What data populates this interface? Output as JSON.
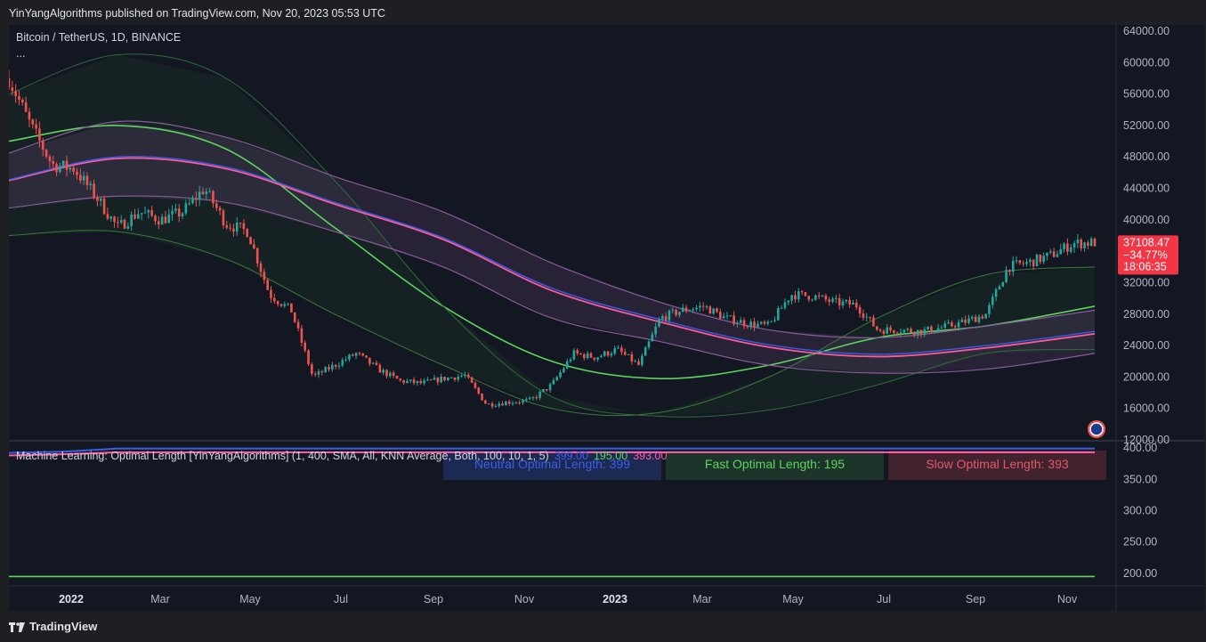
{
  "header": {
    "publisher_line": "YinYangAlgorithms published on TradingView.com, Nov 20, 2023 05:53 UTC"
  },
  "footer": {
    "brand": "TradingView"
  },
  "chart_data": [
    {
      "type": "candlestick",
      "title": "Bitcoin / TetherUS, 1D, BINANCE",
      "subtitle": "...",
      "x_ticks": [
        "2022",
        "Mar",
        "May",
        "Jul",
        "Sep",
        "Nov",
        "2023",
        "Mar",
        "May",
        "Jul",
        "Sep",
        "Nov"
      ],
      "y_ticks": [
        "64000.00",
        "60000.00",
        "56000.00",
        "52000.00",
        "48000.00",
        "44000.00",
        "40000.00",
        "36000.00",
        "32000.00",
        "28000.00",
        "24000.00",
        "20000.00",
        "16000.00",
        "12000.00"
      ],
      "ylim": [
        12000,
        64000
      ],
      "price_label": {
        "price": "37108.47",
        "change": "−34.77%",
        "countdown": "18:06:35",
        "color": "#f23645"
      },
      "close_path": {
        "x": [
          0,
          2,
          4,
          6,
          8,
          10,
          12,
          14,
          16,
          18,
          20,
          22,
          24,
          26,
          28,
          30,
          32,
          34,
          36,
          38,
          40,
          42,
          44,
          46,
          48,
          50,
          52,
          54,
          56,
          58,
          60,
          62,
          64,
          66,
          68,
          70,
          72,
          74,
          76,
          78,
          80,
          82,
          84,
          86,
          88,
          90,
          92,
          94,
          96,
          98,
          100
        ],
        "y": [
          58000,
          52000,
          47000,
          46500,
          43000,
          39000,
          41000,
          40000,
          41000,
          44000,
          39500,
          38500,
          30500,
          28500,
          20000,
          21500,
          23000,
          21000,
          19500,
          19200,
          19800,
          20200,
          16500,
          16800,
          17000,
          19000,
          23000,
          22500,
          23500,
          21500,
          27500,
          28500,
          29000,
          27500,
          26800,
          26500,
          30500,
          30300,
          29500,
          29200,
          26000,
          26000,
          25800,
          26300,
          27000,
          28000,
          34000,
          34600,
          35500,
          37000,
          37108
        ]
      },
      "series": [
        {
          "name": "",
          "color": "#5ed45e",
          "x": [
            0,
            10,
            20,
            30,
            40,
            50,
            60,
            70,
            80,
            90,
            100
          ],
          "y": [
            50000,
            52000,
            49000,
            39000,
            29000,
            22000,
            19800,
            21500,
            25000,
            26500,
            29000
          ]
        },
        {
          "name": "",
          "color": "#2e6b3a",
          "x": [
            0,
            10,
            20,
            30,
            40,
            50,
            60,
            70,
            80,
            90,
            100
          ],
          "y": [
            56000,
            61000,
            58000,
            45000,
            29000,
            17500,
            15000,
            15800,
            19000,
            23000,
            23500
          ]
        },
        {
          "name": "",
          "color": "#3a7a3a",
          "x": [
            0,
            10,
            20,
            30,
            40,
            50,
            60,
            70,
            80,
            90,
            100
          ],
          "y": [
            38000,
            38500,
            35000,
            28000,
            21500,
            16000,
            15500,
            20000,
            27500,
            33000,
            34000
          ]
        },
        {
          "name": "",
          "color": "#ff5a9b",
          "x": [
            0,
            10,
            20,
            30,
            40,
            50,
            60,
            70,
            80,
            90,
            100
          ],
          "y": [
            45000,
            47800,
            46500,
            42000,
            37500,
            31000,
            27000,
            23800,
            22600,
            23700,
            25500
          ]
        },
        {
          "name": "",
          "color": "#3b5ee8",
          "x": [
            0,
            10,
            20,
            30,
            40,
            50,
            60,
            70,
            80,
            90,
            100
          ],
          "y": [
            45100,
            48000,
            46700,
            42200,
            37700,
            31300,
            27300,
            24100,
            22900,
            24000,
            25800
          ]
        },
        {
          "name": "",
          "color": "#8a5a9a",
          "x": [
            0,
            10,
            20,
            30,
            40,
            50,
            60,
            70,
            80,
            90,
            100
          ],
          "y": [
            48500,
            52500,
            50500,
            45500,
            41000,
            34500,
            29500,
            26000,
            25000,
            26500,
            28500
          ]
        },
        {
          "name": "",
          "color": "#8a5a9a",
          "x": [
            0,
            10,
            20,
            30,
            40,
            50,
            60,
            70,
            80,
            90,
            100
          ],
          "y": [
            41500,
            43000,
            42200,
            38500,
            34000,
            27500,
            24500,
            21500,
            20500,
            21000,
            23000
          ]
        }
      ]
    },
    {
      "type": "line",
      "title": "Machine Learning: Optimal Length [YinYangAlgorithms] (1, 400, SMA, All, KNN Average, Both, 100, 10, 1, 5)",
      "values_inline": [
        {
          "text": "399.00",
          "color": "#3b5ee8"
        },
        {
          "text": "195.00",
          "color": "#5ed45e"
        },
        {
          "text": "393.00",
          "color": "#ff5a9b"
        }
      ],
      "y_ticks": [
        "400.00",
        "350.00",
        "300.00",
        "250.00",
        "200.00"
      ],
      "ylim": [
        180,
        410
      ],
      "series": [
        {
          "name": "",
          "color": "#3b5ee8",
          "x": [
            0,
            5,
            10,
            100
          ],
          "y": [
            392,
            394,
            399,
            399
          ]
        },
        {
          "name": "",
          "color": "#ff5a9b",
          "x": [
            0,
            5,
            10,
            100
          ],
          "y": [
            388,
            390,
            393,
            393
          ]
        },
        {
          "name": "",
          "color": "#5ed45e",
          "x": [
            0,
            100
          ],
          "y": [
            195,
            195
          ]
        }
      ],
      "boxes": [
        {
          "label": "Neutral Optimal Length: 399",
          "color": "#3b5ee8",
          "bg": "#1f2d5a"
        },
        {
          "label": "Fast Optimal Length: 195",
          "color": "#5ed45e",
          "bg": "#1f3a2a"
        },
        {
          "label": "Slow Optimal Length: 393",
          "color": "#e05a6a",
          "bg": "#4a2530"
        }
      ]
    }
  ]
}
